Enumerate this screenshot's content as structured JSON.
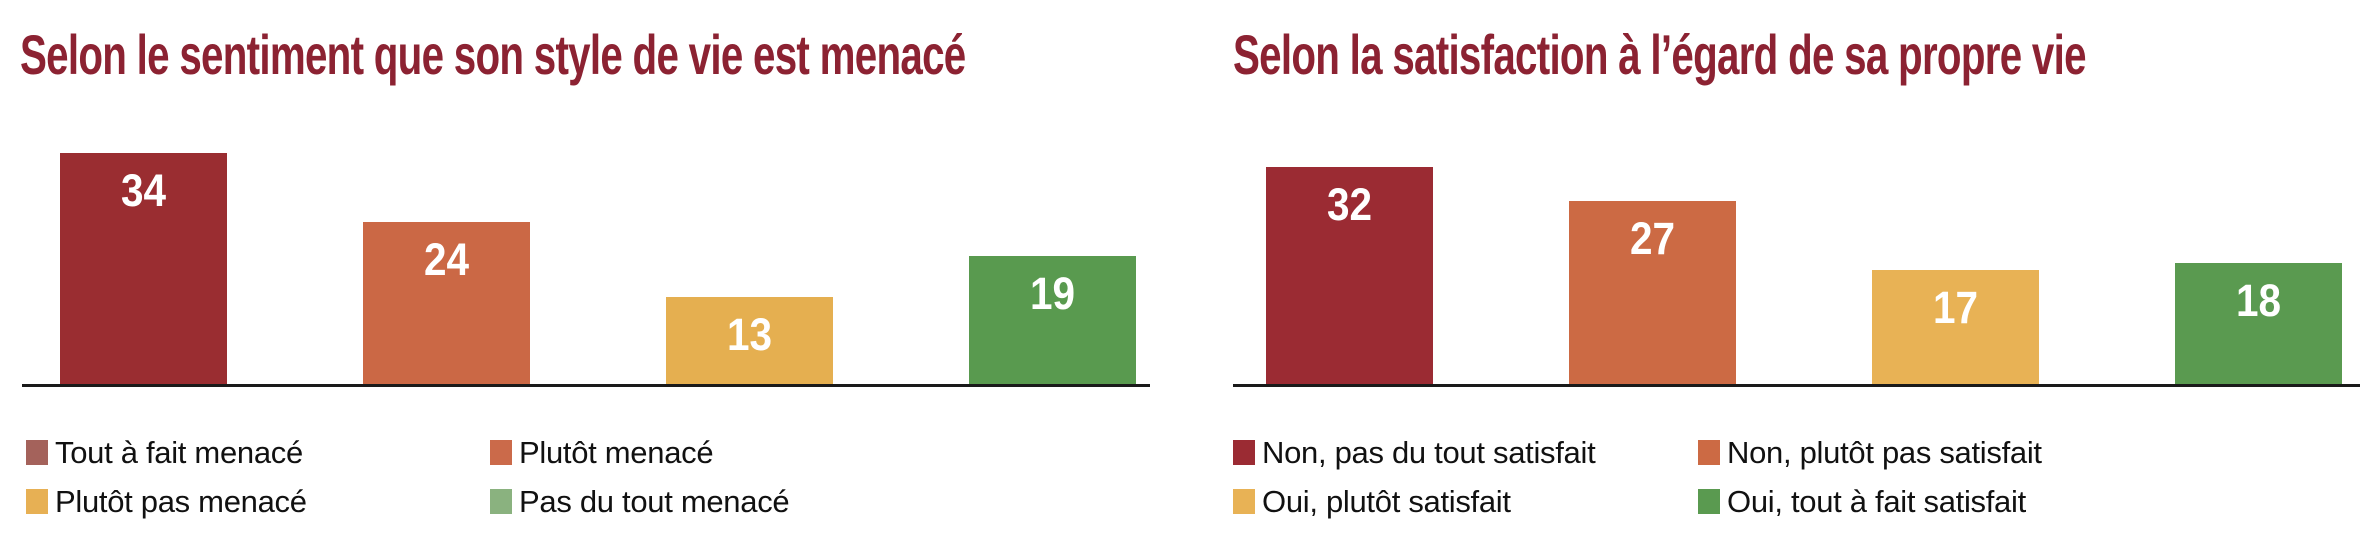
{
  "page": {
    "background": "#ffffff",
    "title_color": "#8C2232",
    "axis_color": "#1a1a1a",
    "legend_text_color": "#111111"
  },
  "chart_data": [
    {
      "type": "bar",
      "title": "Selon le sentiment que son style de vie est menacé",
      "categories": [
        "Tout à fait menacé",
        "Plutôt menacé",
        "Plutôt pas menacé",
        "Pas du tout menacé"
      ],
      "values": [
        34,
        24,
        13,
        19
      ],
      "bar_colors": [
        "#9A2D31",
        "#CB6845",
        "#E5AF50",
        "#599A4F"
      ],
      "value_label_color": "#ffffff",
      "legend": [
        {
          "label": "Tout à fait menacé",
          "color": "#A4625B"
        },
        {
          "label": "Plutôt menacé",
          "color": "#CB6A4A"
        },
        {
          "label": "Plutôt pas menacé",
          "color": "#E7B054"
        },
        {
          "label": "Pas du tout menacé",
          "color": "#8AB27F"
        }
      ],
      "xlabel": "",
      "ylabel": "",
      "ylim": [
        0,
        40
      ],
      "grid": false,
      "y_axis": "hidden",
      "legend_position": "below-2x2"
    },
    {
      "type": "bar",
      "title": "Selon la satisfaction à l’égard de sa propre vie",
      "categories": [
        "Non, pas du tout satisfait",
        "Non, plutôt pas satisfait",
        "Oui, plutôt satisfait",
        "Oui, tout à fait satisfait"
      ],
      "values": [
        32,
        27,
        17,
        18
      ],
      "bar_colors": [
        "#9B2B33",
        "#CC6A44",
        "#E8B255",
        "#5A9A50"
      ],
      "value_label_color": "#ffffff",
      "legend": [
        {
          "label": "Non, pas du tout satisfait",
          "color": "#9B2B33"
        },
        {
          "label": "Non, plutôt pas satisfait",
          "color": "#CC6A44"
        },
        {
          "label": "Oui, plutôt satisfait",
          "color": "#E8B255"
        },
        {
          "label": "Oui, tout à fait satisfait",
          "color": "#5A9A50"
        }
      ],
      "xlabel": "",
      "ylabel": "",
      "ylim": [
        0,
        40
      ],
      "grid": false,
      "y_axis": "hidden",
      "legend_position": "below-2x2"
    }
  ]
}
